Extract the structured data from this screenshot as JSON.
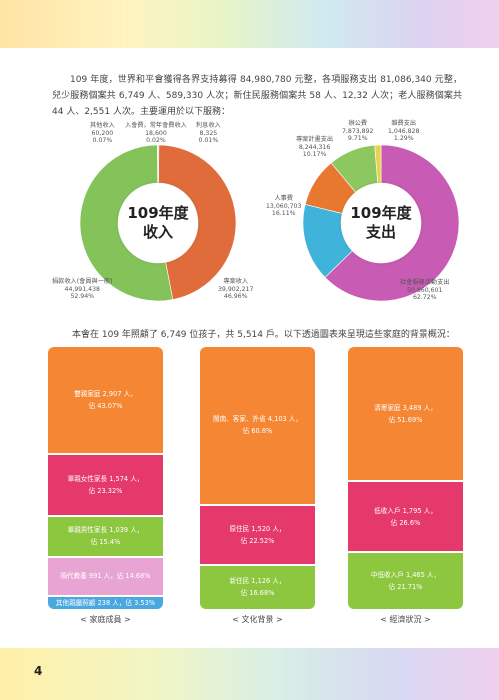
{
  "intro": "109 年度，世界和平會獲得各界支持募得 84,980,780 元整，各項服務支出 81,086,340 元整，兒少服務個案共 6,749 人、589,330 人次；新住民服務個案共 58 人、12,32 人次；老人服務個案共 44 人、2,551 人次。主要運用於以下服務：",
  "income": {
    "center": [
      "109年度",
      "收入"
    ],
    "labels": {
      "other": [
        "其他收入",
        "60,200",
        "0.07%"
      ],
      "membership": [
        "入會費，常年會費收入",
        "18,600",
        "0.02%"
      ],
      "interest": [
        "利息收入",
        "8,325",
        "0.01%"
      ],
      "donation": [
        "捐款收入(會員與一般)",
        "44,991,438",
        "52.94%"
      ],
      "project": [
        "專案收入",
        "39,902,217",
        "46.96%"
      ]
    }
  },
  "expense": {
    "center": [
      "109年度",
      "支出"
    ],
    "labels": {
      "office": [
        "辦公費",
        "7,873,892",
        "9.71%"
      ],
      "misc": [
        "雜費支出",
        "1,046,828",
        "1.29%"
      ],
      "plan": [
        "專案計畫支出",
        "8,244,316",
        "10.17%"
      ],
      "personnel": [
        "人事費",
        "13,060,703",
        "16.11%"
      ],
      "social": [
        "社會服務活動支出",
        "50,860,601",
        "62.72%"
      ]
    }
  },
  "chart_data": [
    {
      "type": "pie",
      "categories": [
        "專案收入",
        "捐款收入(會員與一般)",
        "其他收入",
        "入會費，常年會費收入",
        "利息收入"
      ],
      "values": [
        39902217,
        44991438,
        60200,
        18600,
        8325
      ],
      "percent": [
        46.96,
        52.94,
        0.07,
        0.02,
        0.01
      ],
      "colors": [
        "#e06c3c",
        "#84c35a",
        "#d9c84a",
        "#7fa8d8",
        "#b6b6b6"
      ],
      "title": "109年度 收入"
    },
    {
      "type": "pie",
      "categories": [
        "社會服務活動支出",
        "人事費",
        "專案計畫支出",
        "辦公費",
        "雜費支出"
      ],
      "values": [
        50860601,
        13060703,
        8244316,
        7873892,
        1046828
      ],
      "percent": [
        62.72,
        16.11,
        10.17,
        9.71,
        1.29
      ],
      "colors": [
        "#c85bb3",
        "#3fb3d9",
        "#e8782f",
        "#8cc85f",
        "#e8d24a"
      ],
      "title": "109年度 支出"
    }
  ],
  "mid_text": "本會在 109 年照顧了 6,749 位孩子，共 5,514 戶。以下透過圖表來呈現這些家庭的背景概況：",
  "columns": [
    {
      "caption": "< 家庭成員 >",
      "segments": [
        {
          "line1": "雙親家庭 2,907 人，",
          "line2": "佔 43.07%",
          "value": 43.07,
          "color": "#f58634"
        },
        {
          "line1": "單親女性家長 1,574 人，",
          "line2": "佔 23.32%",
          "value": 23.32,
          "color": "#e5386b"
        },
        {
          "line1": "單親男性家長 1,039 人，",
          "line2": "佔 15.4%",
          "value": 15.4,
          "color": "#8dc63f"
        },
        {
          "line1": "隔代教養 991 人，佔 14.68%",
          "line2": "",
          "value": 14.68,
          "color": "#e8a4d3"
        },
        {
          "line1": "其他親屬照顧 238 人，佔 3.53%",
          "line2": "",
          "value": 3.53,
          "color": "#4aa8e0"
        }
      ]
    },
    {
      "caption": "< 文化背景 >",
      "segments": [
        {
          "line1": "閩南、客家、外省 4,103 人，",
          "line2": "佔 60.8%",
          "value": 60.8,
          "color": "#f58634"
        },
        {
          "line1": "原住民 1,520 人，",
          "line2": "佔 22.52%",
          "value": 22.52,
          "color": "#e5386b"
        },
        {
          "line1": "新住民 1,126 人，",
          "line2": "佔 16.68%",
          "value": 16.68,
          "color": "#8dc63f"
        }
      ]
    },
    {
      "caption": "< 經濟狀況 >",
      "segments": [
        {
          "line1": "清寒家庭 3,489 人，",
          "line2": "佔 51.69%",
          "value": 51.69,
          "color": "#f58634"
        },
        {
          "line1": "低收入戶 1,795 人，",
          "line2": "佔 26.6%",
          "value": 26.6,
          "color": "#e5386b"
        },
        {
          "line1": "中低收入戶 1,465 人，",
          "line2": "佔 21.71%",
          "value": 21.71,
          "color": "#8dc63f"
        }
      ]
    }
  ],
  "page_number": "4"
}
